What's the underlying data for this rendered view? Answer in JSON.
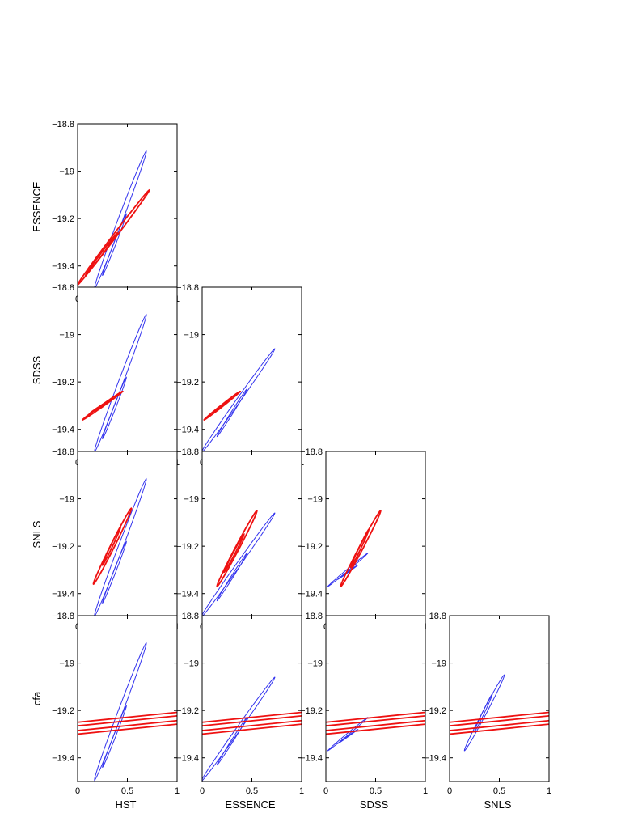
{
  "chart_data": {
    "type": "contour",
    "grid": false,
    "x_ticks": [
      "0",
      "0.5",
      "1"
    ],
    "y_ticks": [
      "−18.8",
      "−19",
      "−19.2",
      "−19.4"
    ],
    "xlim": [
      0,
      1
    ],
    "ylim": [
      -19.5,
      -18.8
    ],
    "row_labels": [
      "ESSENCE",
      "SDSS",
      "SNLS",
      "cfa"
    ],
    "column_labels": [
      "HST",
      "ESSENCE",
      "SDSS",
      "SNLS"
    ],
    "colors": {
      "blue": "#3333ee",
      "red": "#ee1111"
    },
    "contour_levels": [
      "inner",
      "outer"
    ],
    "panels": [
      {
        "row": 0,
        "col": 0,
        "blue": [
          {
            "cx": 0.43,
            "cy": -19.205,
            "dx": 0.26,
            "dy": 0.29,
            "w": 0.025
          },
          {
            "cx": 0.37,
            "cy": -19.31,
            "dx": 0.12,
            "dy": 0.13,
            "w": 0.012
          }
        ],
        "red": [
          {
            "cx": 0.36,
            "cy": -19.28,
            "dx": 0.36,
            "dy": 0.2,
            "w": 0.022
          },
          {
            "cx": 0.24,
            "cy": -19.35,
            "dx": 0.16,
            "dy": 0.09,
            "w": 0.011
          }
        ]
      },
      {
        "row": 1,
        "col": 0,
        "blue": [
          {
            "cx": 0.43,
            "cy": -19.205,
            "dx": 0.26,
            "dy": 0.29,
            "w": 0.025
          },
          {
            "cx": 0.37,
            "cy": -19.31,
            "dx": 0.12,
            "dy": 0.13,
            "w": 0.012
          }
        ],
        "red": [
          {
            "cx": 0.25,
            "cy": -19.3,
            "dx": 0.2,
            "dy": 0.06,
            "w": 0.016
          },
          {
            "cx": 0.24,
            "cy": -19.3,
            "dx": 0.11,
            "dy": 0.03,
            "w": 0.009
          }
        ]
      },
      {
        "row": 1,
        "col": 1,
        "blue": [
          {
            "cx": 0.36,
            "cy": -19.28,
            "dx": 0.37,
            "dy": 0.22,
            "w": 0.025
          },
          {
            "cx": 0.3,
            "cy": -19.33,
            "dx": 0.15,
            "dy": 0.1,
            "w": 0.012
          }
        ],
        "red": [
          {
            "cx": 0.2,
            "cy": -19.3,
            "dx": 0.18,
            "dy": 0.06,
            "w": 0.015
          },
          {
            "cx": 0.2,
            "cy": -19.3,
            "dx": 0.09,
            "dy": 0.03,
            "w": 0.008
          }
        ]
      },
      {
        "row": 2,
        "col": 0,
        "blue": [
          {
            "cx": 0.43,
            "cy": -19.205,
            "dx": 0.26,
            "dy": 0.29,
            "w": 0.025
          },
          {
            "cx": 0.37,
            "cy": -19.31,
            "dx": 0.12,
            "dy": 0.13,
            "w": 0.012
          }
        ],
        "red": [
          {
            "cx": 0.35,
            "cy": -19.2,
            "dx": 0.19,
            "dy": 0.16,
            "w": 0.022
          },
          {
            "cx": 0.34,
            "cy": -19.2,
            "dx": 0.09,
            "dy": 0.08,
            "w": 0.011
          }
        ]
      },
      {
        "row": 2,
        "col": 1,
        "blue": [
          {
            "cx": 0.36,
            "cy": -19.28,
            "dx": 0.37,
            "dy": 0.22,
            "w": 0.025
          },
          {
            "cx": 0.3,
            "cy": -19.33,
            "dx": 0.15,
            "dy": 0.1,
            "w": 0.012
          }
        ],
        "red": [
          {
            "cx": 0.35,
            "cy": -19.21,
            "dx": 0.2,
            "dy": 0.16,
            "w": 0.022
          },
          {
            "cx": 0.32,
            "cy": -19.23,
            "dx": 0.1,
            "dy": 0.08,
            "w": 0.011
          }
        ]
      },
      {
        "row": 2,
        "col": 2,
        "blue": [
          {
            "cx": 0.22,
            "cy": -19.3,
            "dx": 0.2,
            "dy": 0.07,
            "w": 0.013
          },
          {
            "cx": 0.22,
            "cy": -19.31,
            "dx": 0.1,
            "dy": 0.03,
            "w": 0.007
          }
        ],
        "red": [
          {
            "cx": 0.35,
            "cy": -19.21,
            "dx": 0.2,
            "dy": 0.16,
            "w": 0.022
          },
          {
            "cx": 0.34,
            "cy": -19.21,
            "dx": 0.09,
            "dy": 0.08,
            "w": 0.011
          }
        ]
      },
      {
        "row": 3,
        "col": 0,
        "blue": [
          {
            "cx": 0.43,
            "cy": -19.205,
            "dx": 0.26,
            "dy": 0.29,
            "w": 0.025
          },
          {
            "cx": 0.37,
            "cy": -19.31,
            "dx": 0.12,
            "dy": 0.13,
            "w": 0.012
          }
        ],
        "red_bands": [
          {
            "y0": -19.25,
            "y1": -19.208
          },
          {
            "y0": -19.265,
            "y1": -19.223
          },
          {
            "y0": -19.285,
            "y1": -19.243
          },
          {
            "y0": -19.3,
            "y1": -19.258
          }
        ]
      },
      {
        "row": 3,
        "col": 1,
        "blue": [
          {
            "cx": 0.36,
            "cy": -19.28,
            "dx": 0.37,
            "dy": 0.22,
            "w": 0.025
          },
          {
            "cx": 0.3,
            "cy": -19.33,
            "dx": 0.15,
            "dy": 0.1,
            "w": 0.012
          }
        ],
        "red_bands": [
          {
            "y0": -19.25,
            "y1": -19.208
          },
          {
            "y0": -19.265,
            "y1": -19.223
          },
          {
            "y0": -19.285,
            "y1": -19.243
          },
          {
            "y0": -19.3,
            "y1": -19.258
          }
        ]
      },
      {
        "row": 3,
        "col": 2,
        "blue": [
          {
            "cx": 0.22,
            "cy": -19.3,
            "dx": 0.2,
            "dy": 0.07,
            "w": 0.013
          },
          {
            "cx": 0.22,
            "cy": -19.31,
            "dx": 0.1,
            "dy": 0.03,
            "w": 0.007
          }
        ],
        "red_bands": [
          {
            "y0": -19.25,
            "y1": -19.208
          },
          {
            "y0": -19.265,
            "y1": -19.223
          },
          {
            "y0": -19.285,
            "y1": -19.243
          },
          {
            "y0": -19.3,
            "y1": -19.258
          }
        ]
      },
      {
        "row": 3,
        "col": 3,
        "blue": [
          {
            "cx": 0.35,
            "cy": -19.21,
            "dx": 0.2,
            "dy": 0.16,
            "w": 0.022
          },
          {
            "cx": 0.34,
            "cy": -19.21,
            "dx": 0.09,
            "dy": 0.08,
            "w": 0.011
          }
        ],
        "red_bands": [
          {
            "y0": -19.25,
            "y1": -19.208
          },
          {
            "y0": -19.265,
            "y1": -19.223
          },
          {
            "y0": -19.285,
            "y1": -19.243
          },
          {
            "y0": -19.3,
            "y1": -19.258
          }
        ]
      }
    ]
  }
}
